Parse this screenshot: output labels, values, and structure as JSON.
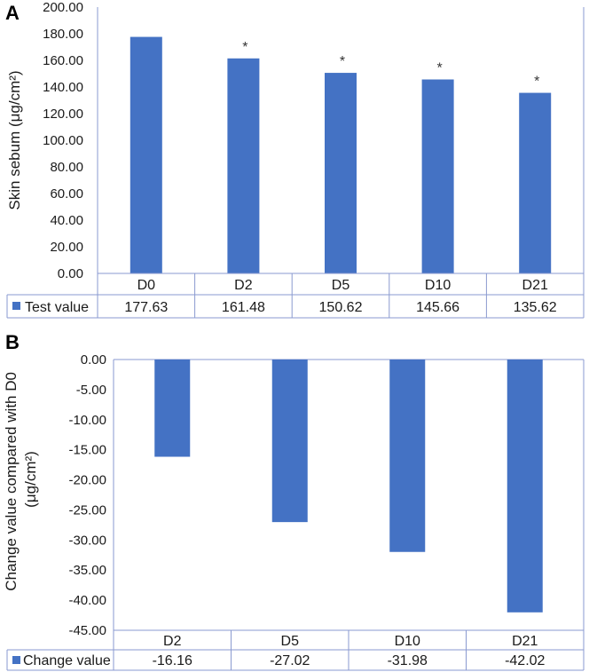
{
  "chart_data": [
    {
      "type": "bar",
      "panel": "A",
      "ylabel": "Skin sebum (μg/cm²)",
      "categories": [
        "D0",
        "D2",
        "D5",
        "D10",
        "D21"
      ],
      "series": [
        {
          "name": "Test value",
          "values": [
            177.63,
            161.48,
            150.62,
            145.66,
            135.62
          ],
          "display": [
            "177.63",
            "161.48",
            "150.62",
            "145.66",
            "135.62"
          ]
        }
      ],
      "significance": [
        "",
        "*",
        "*",
        "*",
        "*"
      ],
      "ylim": [
        0,
        200
      ],
      "yticks": [
        "0.00",
        "20.00",
        "40.00",
        "60.00",
        "80.00",
        "100.00",
        "120.00",
        "140.00",
        "160.00",
        "180.00",
        "200.00"
      ],
      "color": "#4472c4",
      "legend": "data-table"
    },
    {
      "type": "bar",
      "panel": "B",
      "ylabel": "Change value compared with D0 (μg/cm²)",
      "categories": [
        "D2",
        "D5",
        "D10",
        "D21"
      ],
      "series": [
        {
          "name": "Change value",
          "values": [
            -16.16,
            -27.02,
            -31.98,
            -42.02
          ],
          "display": [
            "-16.16",
            "-27.02",
            "-31.98",
            "-42.02"
          ]
        }
      ],
      "ylim": [
        -45,
        0
      ],
      "yticks": [
        "0.00",
        "-5.00",
        "-10.00",
        "-15.00",
        "-20.00",
        "-25.00",
        "-30.00",
        "-35.00",
        "-40.00",
        "-45.00"
      ],
      "color": "#4472c4",
      "legend": "data-table"
    }
  ]
}
